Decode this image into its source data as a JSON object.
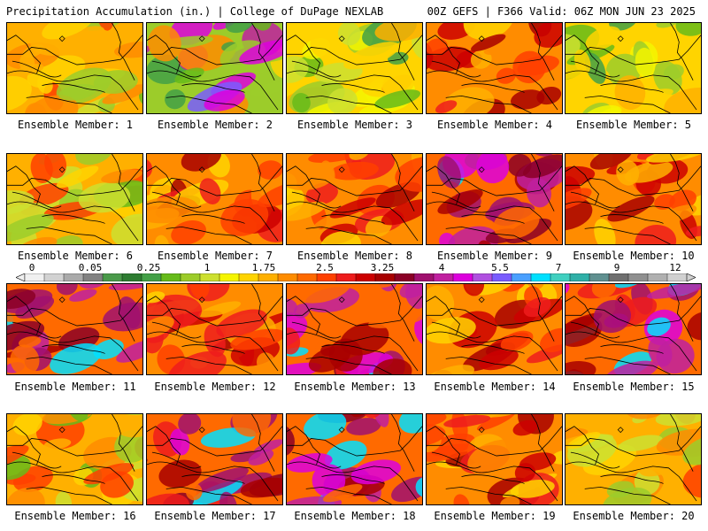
{
  "header": {
    "left_title": "Precipitation Accumulation (in.) | College of DuPage NEXLAB",
    "right_title": "00Z GEFS | F366 Valid: 06Z MON JUN 23 2025"
  },
  "panels": [
    {
      "caption": "Ensemble Member: 1",
      "palette": "mixed"
    },
    {
      "caption": "Ensemble Member: 2",
      "palette": "green-purple"
    },
    {
      "caption": "Ensemble Member: 3",
      "palette": "green"
    },
    {
      "caption": "Ensemble Member: 4",
      "palette": "red"
    },
    {
      "caption": "Ensemble Member: 5",
      "palette": "green"
    },
    {
      "caption": "Ensemble Member: 6",
      "palette": "mixed"
    },
    {
      "caption": "Ensemble Member: 7",
      "palette": "red"
    },
    {
      "caption": "Ensemble Member: 8",
      "palette": "red"
    },
    {
      "caption": "Ensemble Member: 9",
      "palette": "purple"
    },
    {
      "caption": "Ensemble Member: 10",
      "palette": "red"
    },
    {
      "caption": "Ensemble Member: 11",
      "palette": "purple"
    },
    {
      "caption": "Ensemble Member: 12",
      "palette": "red"
    },
    {
      "caption": "Ensemble Member: 13",
      "palette": "purple"
    },
    {
      "caption": "Ensemble Member: 14",
      "palette": "red"
    },
    {
      "caption": "Ensemble Member: 15",
      "palette": "purple"
    },
    {
      "caption": "Ensemble Member: 16",
      "palette": "mixed"
    },
    {
      "caption": "Ensemble Member: 17",
      "palette": "purple"
    },
    {
      "caption": "Ensemble Member: 18",
      "palette": "purple"
    },
    {
      "caption": "Ensemble Member: 19",
      "palette": "red"
    },
    {
      "caption": "Ensemble Member: 20",
      "palette": "mixed"
    }
  ],
  "colorbar": {
    "labels": [
      "0",
      "0.05",
      "0.25",
      "1",
      "1.75",
      "2.5",
      "3.25",
      "4",
      "5.5",
      "7",
      "9",
      "12"
    ],
    "colors": [
      "#f0f0f0",
      "#d2d2d2",
      "#aaaaaa",
      "#828282",
      "#4a9a4a",
      "#2e7d32",
      "#43a047",
      "#66bb1a",
      "#9ccc2a",
      "#cde030",
      "#f5f500",
      "#ffd400",
      "#ffb000",
      "#ff8c00",
      "#ff6a00",
      "#ff4000",
      "#ee1c1c",
      "#cc0000",
      "#a80000",
      "#8b0026",
      "#a0106e",
      "#c020a0",
      "#dd00dd",
      "#b050e0",
      "#7a5cff",
      "#4aa0ff",
      "#00e0ff",
      "#40d0c0",
      "#30b0a8",
      "#609090",
      "#707070",
      "#909090",
      "#b0b0b0",
      "#d0d0d0"
    ]
  }
}
